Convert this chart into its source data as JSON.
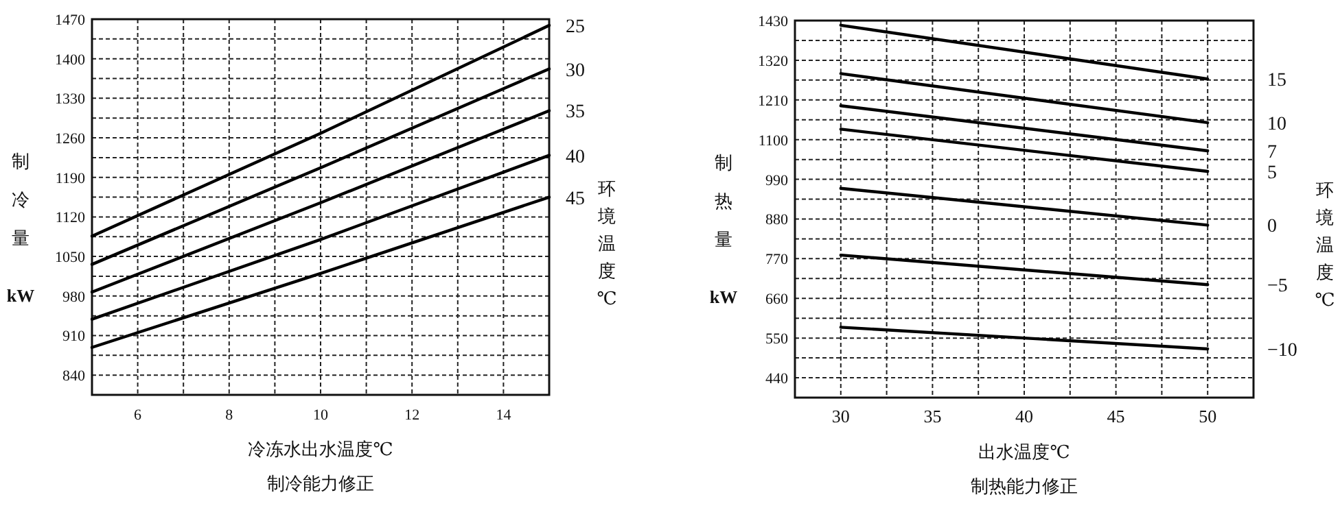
{
  "chart_data": [
    {
      "type": "line",
      "title": "制冷能力修正",
      "xlabel": "冷冻水出水温度℃",
      "ylabel": "制冷量 kW",
      "legend_title": "环境温度℃",
      "xlim": [
        5,
        15
      ],
      "ylim": [
        805,
        1470
      ],
      "xticks": [
        {
          "value": 5,
          "label": null
        },
        6,
        {
          "value": 7,
          "label": null
        },
        8,
        {
          "value": 9,
          "label": null
        },
        10,
        {
          "value": 11,
          "label": null
        },
        12,
        {
          "value": 13,
          "label": null
        },
        14,
        {
          "value": 15,
          "label": null
        }
      ],
      "yticks": [
        840,
        {
          "value": 875,
          "label": null
        },
        910,
        {
          "value": 945,
          "label": null
        },
        980,
        {
          "value": 1015,
          "label": null
        },
        1050,
        {
          "value": 1085,
          "label": null
        },
        1120,
        {
          "value": 1155,
          "label": null
        },
        1190,
        {
          "value": 1225,
          "label": null
        },
        1260,
        {
          "value": 1295,
          "label": null
        },
        1330,
        {
          "value": 1365,
          "label": null
        },
        1400,
        {
          "value": 1435,
          "label": null
        },
        1470
      ],
      "grid": true,
      "series": [
        {
          "name": "25",
          "color": "#000000",
          "x": [
            5,
            10,
            15
          ],
          "values": [
            1086,
            1268,
            1459
          ]
        },
        {
          "name": "30",
          "color": "#000000",
          "x": [
            5,
            10,
            15
          ],
          "values": [
            1036,
            1207,
            1382
          ]
        },
        {
          "name": "35",
          "color": "#000000",
          "x": [
            5,
            10,
            15
          ],
          "values": [
            987,
            1145,
            1308
          ]
        },
        {
          "name": "40",
          "color": "#000000",
          "x": [
            5,
            10,
            15
          ],
          "values": [
            939,
            1080,
            1229
          ]
        },
        {
          "name": "45",
          "color": "#000000",
          "x": [
            5,
            10,
            15
          ],
          "values": [
            889,
            1020,
            1155
          ]
        }
      ]
    },
    {
      "type": "line",
      "title": "制热能力修正",
      "xlabel": "出水温度℃",
      "ylabel": "制热量 kW",
      "legend_title": "环境温度℃",
      "xlim": [
        27.5,
        52.5
      ],
      "ylim": [
        385,
        1430
      ],
      "xticks": [
        30,
        {
          "value": 32.5,
          "label": null
        },
        35,
        {
          "value": 37.5,
          "label": null
        },
        40,
        {
          "value": 42.5,
          "label": null
        },
        45,
        {
          "value": 47.5,
          "label": null
        },
        50
      ],
      "yticks": [
        440,
        {
          "value": 495,
          "label": null
        },
        550,
        {
          "value": 605,
          "label": null
        },
        660,
        {
          "value": 715,
          "label": null
        },
        770,
        {
          "value": 825,
          "label": null
        },
        880,
        {
          "value": 935,
          "label": null
        },
        990,
        {
          "value": 1045,
          "label": null
        },
        1100,
        {
          "value": 1155,
          "label": null
        },
        1210,
        {
          "value": 1265,
          "label": null
        },
        1320,
        {
          "value": 1375,
          "label": null
        },
        1430
      ],
      "grid": true,
      "series": [
        {
          "name": "15",
          "color": "#000000",
          "x": [
            30,
            50
          ],
          "values": [
            1417,
            1268
          ]
        },
        {
          "name": "10",
          "color": "#000000",
          "x": [
            30,
            50
          ],
          "values": [
            1283,
            1147
          ]
        },
        {
          "name": "7",
          "color": "#000000",
          "x": [
            30,
            50
          ],
          "values": [
            1194,
            1069
          ]
        },
        {
          "name": "5",
          "color": "#000000",
          "x": [
            30,
            50
          ],
          "values": [
            1129,
            1012
          ]
        },
        {
          "name": "0",
          "color": "#000000",
          "x": [
            30,
            50
          ],
          "values": [
            965,
            863
          ]
        },
        {
          "name": "−5",
          "color": "#000000",
          "x": [
            30,
            50
          ],
          "values": [
            780,
            698
          ]
        },
        {
          "name": "−10",
          "color": "#000000",
          "x": [
            30,
            50
          ],
          "values": [
            580,
            520
          ]
        }
      ]
    }
  ]
}
